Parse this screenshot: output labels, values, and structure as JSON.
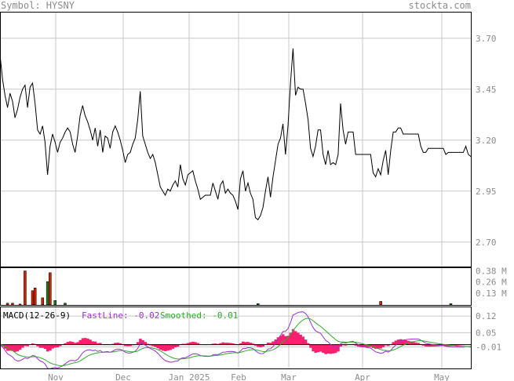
{
  "header": {
    "symbol_label": "Symbol: HYSNY",
    "site": "stockta.com"
  },
  "colors": {
    "price_line": "#000000",
    "up_volume": "#1a7a1a",
    "down_volume": "#cc2200",
    "fast_line": "#9932cc",
    "smoothed_line": "#2eaa2e",
    "histogram": "#ff1f6e",
    "grid": "#c8c8c8",
    "axis_text": "#8c8c8c"
  },
  "x_axis": {
    "months": [
      "Nov",
      "Dec",
      "Jan 2025",
      "Feb",
      "Mar",
      "Apr",
      "May"
    ]
  },
  "price_panel": {
    "ticks": [
      "3.70",
      "3.45",
      "3.20",
      "2.95",
      "2.70"
    ],
    "ylim": [
      2.58,
      3.83
    ]
  },
  "volume_panel": {
    "ticks": [
      "0.38 M",
      "0.26 M",
      "0.13 M"
    ]
  },
  "macd_panel": {
    "title": "MACD(12-26-9)",
    "fast_label": "FastLine: -0.02",
    "smoothed_label": "Smoothed: -0.01",
    "ticks": [
      "0.12",
      "0.05",
      "-0.01"
    ],
    "ylim": [
      -0.1,
      0.16
    ]
  },
  "chart_data": [
    {
      "type": "line",
      "series_role": "price",
      "x_range": [
        "2024-10-17",
        "2025-05-19"
      ],
      "values": [
        3.62,
        3.5,
        3.42,
        3.36,
        3.43,
        3.39,
        3.31,
        3.35,
        3.41,
        3.45,
        3.47,
        3.36,
        3.46,
        3.48,
        3.38,
        3.25,
        3.23,
        3.27,
        3.19,
        3.03,
        3.17,
        3.23,
        3.19,
        3.14,
        3.19,
        3.21,
        3.24,
        3.26,
        3.24,
        3.18,
        3.14,
        3.22,
        3.32,
        3.37,
        3.32,
        3.29,
        3.25,
        3.2,
        3.26,
        3.17,
        3.25,
        3.14,
        3.22,
        3.21,
        3.16,
        3.24,
        3.27,
        3.24,
        3.2,
        3.15,
        3.09,
        3.13,
        3.14,
        3.18,
        3.21,
        3.3,
        3.44,
        3.22,
        3.18,
        3.14,
        3.11,
        3.13,
        3.09,
        3.03,
        2.97,
        2.95,
        2.93,
        2.96,
        2.95,
        2.98,
        3.0,
        2.97,
        3.08,
        3.01,
        2.98,
        3.03,
        3.04,
        3.05,
        3.0,
        2.96,
        2.91,
        2.92,
        2.93,
        2.93,
        2.93,
        2.99,
        2.95,
        2.91,
        2.98,
        3.0,
        2.94,
        2.96,
        2.94,
        2.93,
        2.9,
        2.86,
        3.01,
        3.05,
        2.95,
        2.99,
        2.94,
        2.91,
        2.82,
        2.81,
        2.83,
        2.87,
        2.95,
        3.02,
        2.92,
        3.02,
        3.1,
        3.18,
        3.21,
        3.28,
        3.13,
        3.27,
        3.48,
        3.65,
        3.42,
        3.46,
        3.45,
        3.45,
        3.38,
        3.3,
        3.16,
        3.12,
        3.17,
        3.25,
        3.25,
        3.13,
        3.08,
        3.15,
        3.08,
        3.09,
        3.08,
        3.13,
        3.38,
        3.25,
        3.18,
        3.24,
        3.24,
        3.24,
        3.13,
        3.13,
        3.13,
        3.13,
        3.13,
        3.13,
        3.13,
        3.04,
        3.02,
        3.06,
        3.03,
        3.1,
        3.15,
        3.03,
        3.15,
        3.24,
        3.24,
        3.26,
        3.26,
        3.23,
        3.23,
        3.23,
        3.23,
        3.23,
        3.23,
        3.23,
        3.17,
        3.14,
        3.14,
        3.16,
        3.16,
        3.16,
        3.16,
        3.16,
        3.16,
        3.16,
        3.13,
        3.14,
        3.14,
        3.14,
        3.14,
        3.14,
        3.14,
        3.14,
        3.17,
        3.13,
        3.12
      ]
    },
    {
      "type": "bar",
      "series_role": "volume",
      "unit": "M",
      "bars": [
        {
          "i": 3,
          "v": 0.02,
          "dir": "down"
        },
        {
          "i": 5,
          "v": 0.02,
          "dir": "down"
        },
        {
          "i": 8,
          "v": 0.01,
          "dir": "down"
        },
        {
          "i": 10,
          "v": 0.38,
          "dir": "down"
        },
        {
          "i": 13,
          "v": 0.16,
          "dir": "down"
        },
        {
          "i": 14,
          "v": 0.19,
          "dir": "down"
        },
        {
          "i": 17,
          "v": 0.08,
          "dir": "down"
        },
        {
          "i": 19,
          "v": 0.26,
          "dir": "up"
        },
        {
          "i": 20,
          "v": 0.36,
          "dir": "down"
        },
        {
          "i": 22,
          "v": 0.05,
          "dir": "up"
        },
        {
          "i": 26,
          "v": 0.02,
          "dir": "up"
        },
        {
          "i": 103,
          "v": 0.015,
          "dir": "up"
        },
        {
          "i": 152,
          "v": 0.04,
          "dir": "down"
        },
        {
          "i": 180,
          "v": 0.015,
          "dir": "up"
        }
      ]
    },
    {
      "type": "line",
      "series_role": "macd",
      "series": [
        {
          "name": "FastLine",
          "end": -0.02
        },
        {
          "name": "Smoothed",
          "end": -0.01
        }
      ]
    }
  ]
}
